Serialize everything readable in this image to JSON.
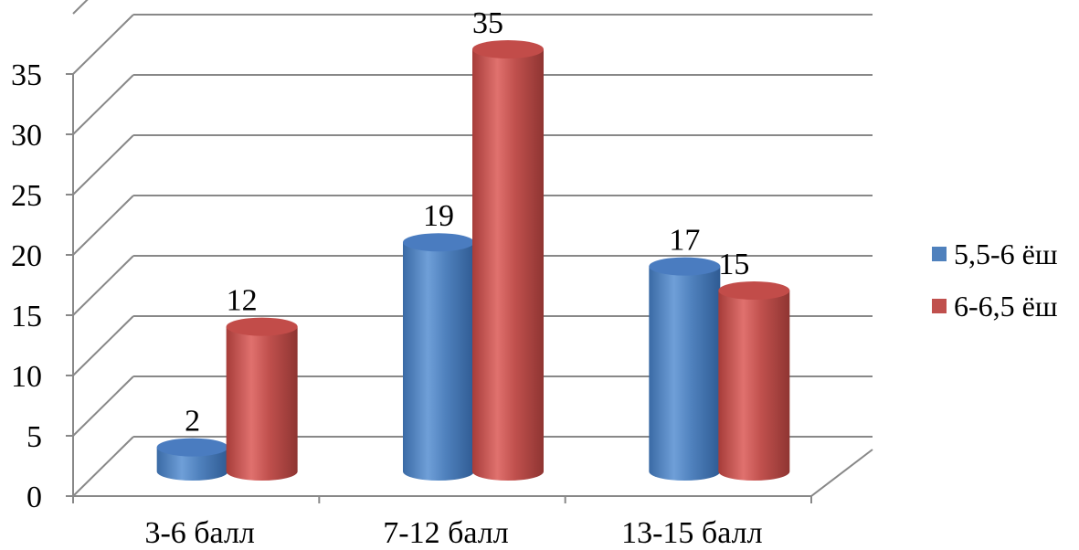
{
  "chart_data": {
    "type": "bar",
    "style": "3d-cylinder",
    "title": "",
    "xlabel": "",
    "ylabel": "",
    "categories": [
      "3-6 балл",
      "7-12 балл",
      "13-15 балл"
    ],
    "series": [
      {
        "name": "5,5-6 ёш",
        "values": [
          2,
          19,
          17
        ],
        "color": "#4f81bd"
      },
      {
        "name": "6-6,5 ёш",
        "values": [
          12,
          35,
          15
        ],
        "color": "#c0504d"
      }
    ],
    "ylim": [
      0,
      35
    ],
    "yticks": [
      0,
      5,
      10,
      15,
      20,
      25,
      30,
      35
    ],
    "data_labels": true,
    "grid": true,
    "legend_position": "right"
  }
}
